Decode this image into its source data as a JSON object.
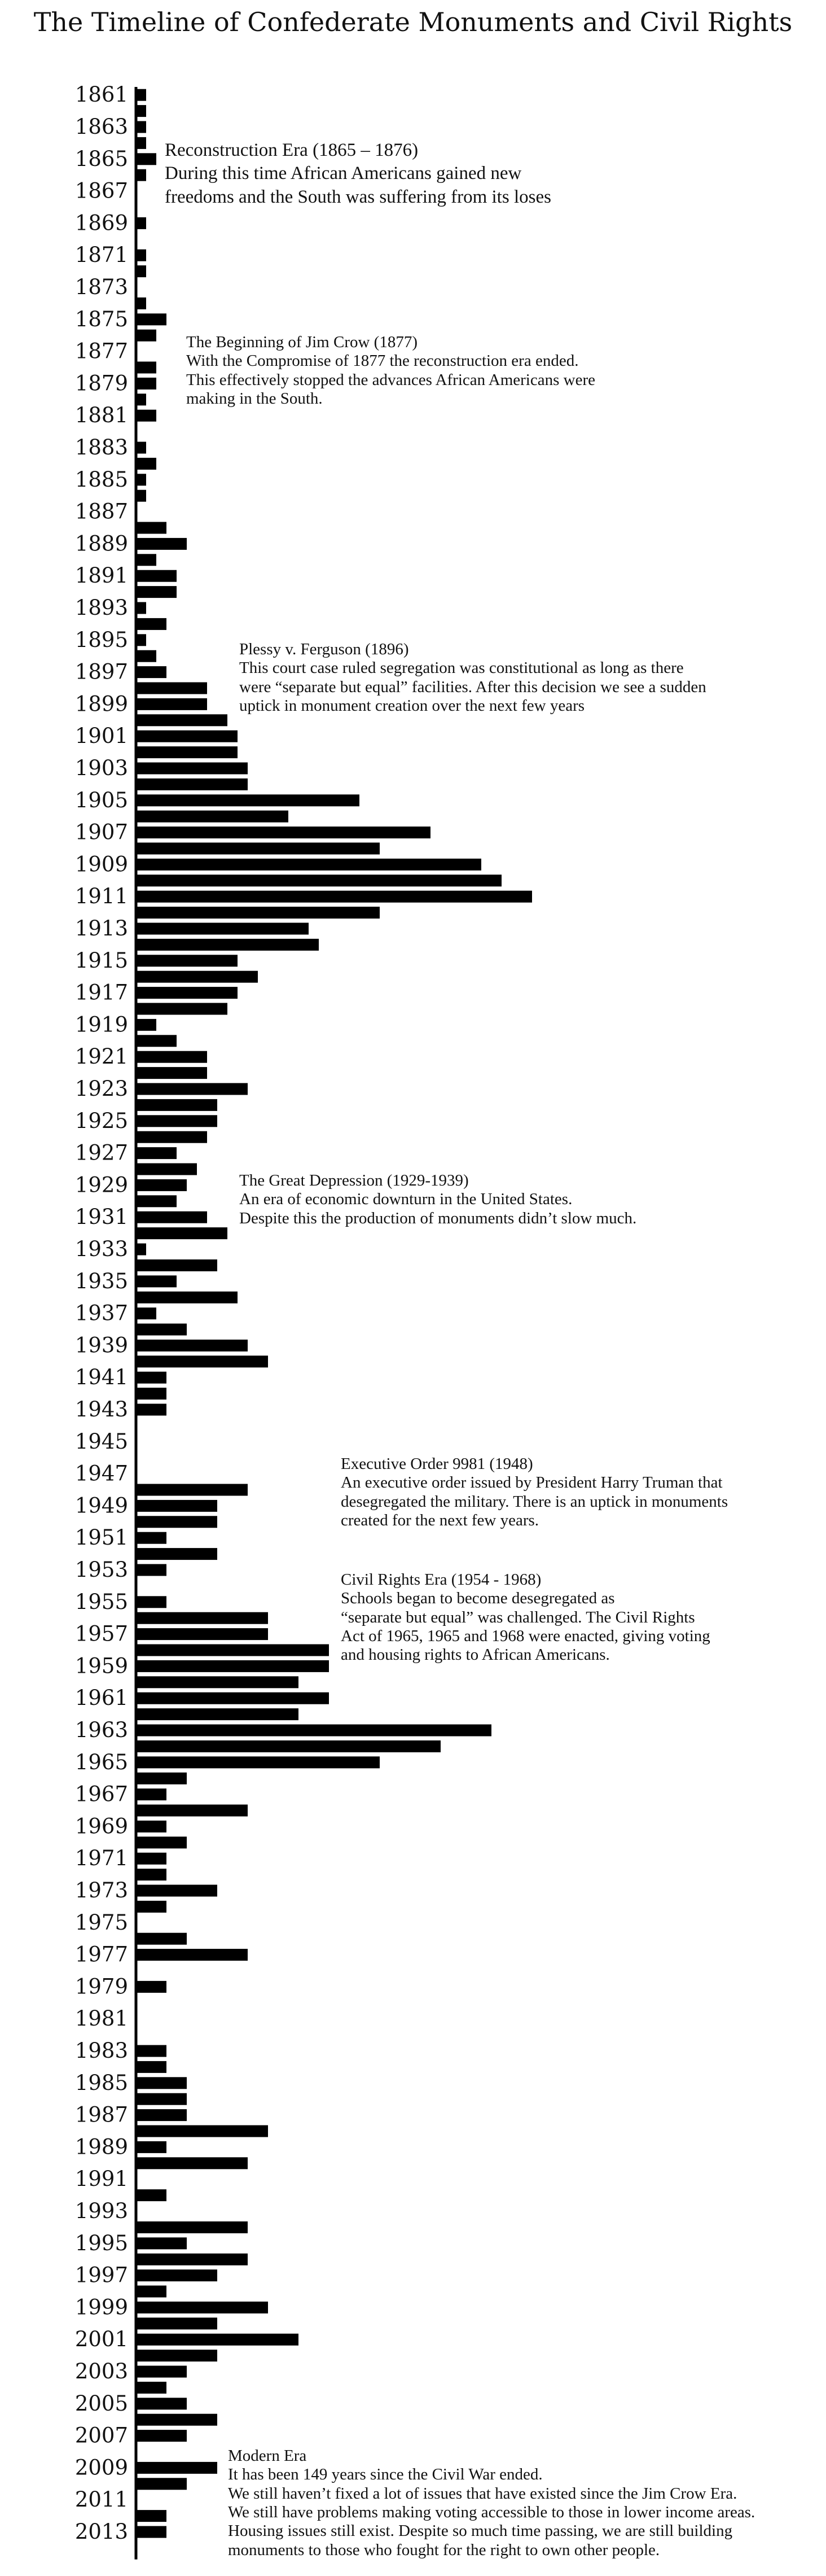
{
  "chart_data": {
    "type": "bar",
    "orientation": "horizontal",
    "title": "The Timeline of Confederate Monuments and Civil Rights",
    "xlabel": "",
    "ylabel": "",
    "years": [
      1861,
      1862,
      1863,
      1864,
      1865,
      1866,
      1867,
      1868,
      1869,
      1870,
      1871,
      1872,
      1873,
      1874,
      1875,
      1876,
      1877,
      1878,
      1879,
      1880,
      1881,
      1882,
      1883,
      1884,
      1885,
      1886,
      1887,
      1888,
      1889,
      1890,
      1891,
      1892,
      1893,
      1894,
      1895,
      1896,
      1897,
      1898,
      1899,
      1900,
      1901,
      1902,
      1903,
      1904,
      1905,
      1906,
      1907,
      1908,
      1909,
      1910,
      1911,
      1912,
      1913,
      1914,
      1915,
      1916,
      1917,
      1918,
      1919,
      1920,
      1921,
      1922,
      1923,
      1924,
      1925,
      1926,
      1927,
      1928,
      1929,
      1930,
      1931,
      1932,
      1933,
      1934,
      1935,
      1936,
      1937,
      1938,
      1939,
      1940,
      1941,
      1942,
      1943,
      1944,
      1945,
      1946,
      1947,
      1948,
      1949,
      1950,
      1951,
      1952,
      1953,
      1954,
      1955,
      1956,
      1957,
      1958,
      1959,
      1960,
      1961,
      1962,
      1963,
      1964,
      1965,
      1966,
      1967,
      1968,
      1969,
      1970,
      1971,
      1972,
      1973,
      1974,
      1975,
      1976,
      1977,
      1978,
      1979,
      1980,
      1981,
      1982,
      1983,
      1984,
      1985,
      1986,
      1987,
      1988,
      1989,
      1990,
      1991,
      1992,
      1993,
      1994,
      1995,
      1996,
      1997,
      1998,
      1999,
      2000,
      2001,
      2002,
      2003,
      2004,
      2005,
      2006,
      2007,
      2008,
      2009,
      2010,
      2011,
      2012,
      2013,
      2014
    ],
    "tick_labels": [
      "1861",
      "1863",
      "1865",
      "1867",
      "1869",
      "1871",
      "1873",
      "1875",
      "1877",
      "1879",
      "1881",
      "1883",
      "1885",
      "1887",
      "1889",
      "1891",
      "1893",
      "1895",
      "1897",
      "1899",
      "1901",
      "1903",
      "1905",
      "1907",
      "1909",
      "1911",
      "1913",
      "1915",
      "1917",
      "1919",
      "1921",
      "1923",
      "1925",
      "1927",
      "1929",
      "1931",
      "1933",
      "1935",
      "1937",
      "1939",
      "1941",
      "1943",
      "1945",
      "1947",
      "1949",
      "1951",
      "1953",
      "1955",
      "1957",
      "1959",
      "1961",
      "1963",
      "1965",
      "1967",
      "1969",
      "1971",
      "1973",
      "1975",
      "1977",
      "1979",
      "1981",
      "1983",
      "1985",
      "1987",
      "1989",
      "1991",
      "1993",
      "1995",
      "1997",
      "1999",
      "2001",
      "2003",
      "2005",
      "2007",
      "2009",
      "2011",
      "2013"
    ],
    "values": [
      1,
      1,
      1,
      1,
      2,
      1,
      0,
      0,
      1,
      0,
      1,
      1,
      0,
      1,
      3,
      2,
      0,
      2,
      2,
      1,
      2,
      0,
      1,
      2,
      1,
      1,
      0,
      3,
      5,
      2,
      4,
      4,
      1,
      3,
      1,
      2,
      3,
      7,
      7,
      9,
      10,
      10,
      11,
      11,
      22,
      15,
      29,
      24,
      34,
      36,
      39,
      24,
      17,
      18,
      10,
      12,
      10,
      9,
      2,
      4,
      7,
      7,
      11,
      8,
      8,
      7,
      4,
      6,
      5,
      4,
      7,
      9,
      1,
      8,
      4,
      10,
      2,
      5,
      11,
      13,
      3,
      3,
      3,
      0,
      0,
      0,
      0,
      11,
      8,
      8,
      3,
      8,
      3,
      0,
      3,
      13,
      13,
      19,
      19,
      16,
      19,
      16,
      35,
      30,
      24,
      5,
      3,
      11,
      3,
      5,
      3,
      3,
      8,
      3,
      0,
      5,
      11,
      0,
      3,
      0,
      0,
      0,
      3,
      3,
      5,
      5,
      5,
      13,
      3,
      11,
      0,
      3,
      0,
      11,
      5,
      11,
      8,
      3,
      13,
      8,
      16,
      8,
      5,
      3,
      5,
      8,
      5,
      0,
      8,
      5,
      0,
      3,
      3,
      0
    ],
    "xlim": [
      0,
      40
    ],
    "grid": false,
    "legend": "none"
  },
  "annotations": [
    {
      "title": "Reconstruction Era (1865 – 1876)",
      "lines": [
        "During this time African Americans gained new",
        "freedoms and the South was suffering from its loses"
      ]
    },
    {
      "title": "The Beginning of Jim Crow (1877)",
      "lines": [
        "With the Compromise of 1877 the reconstruction era ended.",
        "This effectively stopped the advances African Americans were",
        "making in the South."
      ]
    },
    {
      "title": "Plessy v. Ferguson (1896)",
      "lines": [
        "This court case ruled segregation was constitutional as long as there",
        "were “separate but equal” facilities. After this decision we see a sudden",
        "uptick in monument creation over the next few years"
      ]
    },
    {
      "title": "The Great Depression (1929-1939)",
      "lines": [
        "An era of economic downturn in the United States.",
        "Despite this the production of monuments didn’t slow much."
      ]
    },
    {
      "title": "Executive Order 9981 (1948)",
      "lines": [
        "An executive order issued by President Harry Truman that",
        "desegregated the military. There is an uptick in monuments",
        "created for the next few years."
      ]
    },
    {
      "title": "Civil Rights Era (1954 - 1968)",
      "lines": [
        "Schools began to become desegregated as",
        "“separate but equal” was challenged. The Civil Rights",
        "Act of 1965, 1965 and 1968 were enacted, giving voting",
        "and housing rights to African Americans."
      ]
    },
    {
      "title": "Modern Era",
      "lines": [
        "It has been 149 years since the Civil War ended.",
        "We still haven’t fixed a lot of issues that have existed since the Jim Crow Era.",
        "We still have problems making voting accessible to those in lower income areas.",
        "Housing issues still exist. Despite so much time passing, we are still building",
        "monuments to those who fought for the right to own other people."
      ]
    }
  ],
  "colors": {
    "bar": "#000000",
    "axis": "#000000",
    "text": "#111111",
    "background": "#ffffff"
  }
}
